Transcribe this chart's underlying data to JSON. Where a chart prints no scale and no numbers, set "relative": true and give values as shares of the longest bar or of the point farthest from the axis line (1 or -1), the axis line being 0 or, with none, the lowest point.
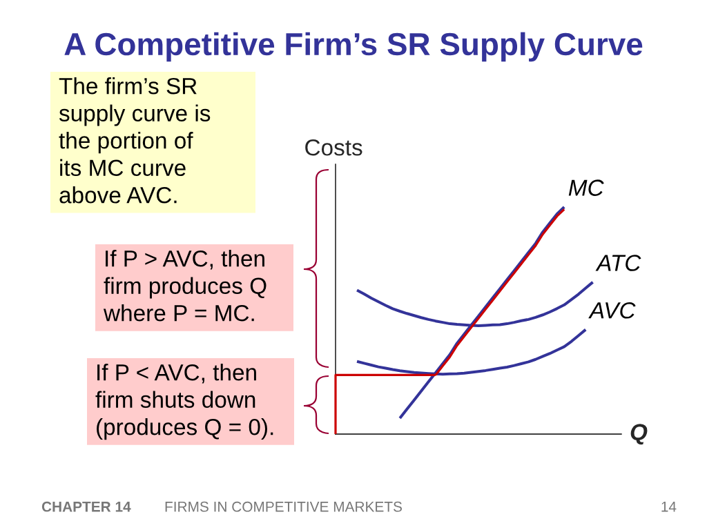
{
  "chart_data": {
    "type": "line",
    "title": "A Competitive Firm’s SR Supply Curve",
    "xlabel": "Q",
    "ylabel": "Costs",
    "relative": true,
    "categories": [
      null,
      null,
      null,
      null,
      null,
      null,
      null,
      null,
      null,
      null,
      null,
      null,
      null,
      null,
      null,
      null,
      null,
      null,
      null,
      null,
      null,
      null,
      null,
      null,
      null,
      null,
      null,
      null,
      null,
      null,
      null,
      null,
      null,
      null,
      null,
      null,
      null,
      null,
      null,
      null,
      null
    ],
    "series": [
      {
        "name": "MC",
        "color": "#333399",
        "values": [
          null,
          null,
          null,
          null,
          null,
          null,
          null,
          null,
          null,
          0.07,
          0.11,
          0.15,
          0.19,
          0.23,
          0.27,
          0.31,
          0.35,
          0.4,
          0.44,
          0.48,
          0.52,
          0.56,
          0.6,
          0.64,
          0.68,
          0.72,
          0.76,
          0.8,
          0.84,
          0.89,
          0.93,
          0.97,
          1.0,
          null,
          null,
          null,
          null,
          null,
          null,
          null,
          null
        ]
      },
      {
        "name": "ATC",
        "color": "#333399",
        "values": [
          null,
          null,
          null,
          0.634,
          0.617,
          0.599,
          0.583,
          0.567,
          0.552,
          0.541,
          0.531,
          0.522,
          0.513,
          0.505,
          0.498,
          0.492,
          0.486,
          0.483,
          0.481,
          0.479,
          0.477,
          0.479,
          0.481,
          0.482,
          0.486,
          0.492,
          0.499,
          0.505,
          0.514,
          0.525,
          0.538,
          0.553,
          0.569,
          0.592,
          0.616,
          0.643,
          0.669,
          null,
          null,
          null,
          null
        ]
      },
      {
        "name": "AVC",
        "color": "#333399",
        "values": [
          null,
          null,
          null,
          0.32,
          0.312,
          0.304,
          0.296,
          0.29,
          0.284,
          0.279,
          0.275,
          0.271,
          0.269,
          0.267,
          0.265,
          0.264,
          0.265,
          0.266,
          0.268,
          0.272,
          0.276,
          0.28,
          0.285,
          0.29,
          0.295,
          0.302,
          0.31,
          0.318,
          0.329,
          0.342,
          0.355,
          0.37,
          0.385,
          0.408,
          0.434,
          0.46,
          null,
          null,
          null,
          null,
          null
        ]
      },
      {
        "type": "step",
        "color": "#cc0000",
        "values": [
          0,
          0.26,
          0.26,
          0.26,
          0.26,
          0.26,
          0.26,
          0.26,
          0.26,
          0.26,
          0.26,
          0.26,
          0.26,
          0.26,
          0.26,
          null,
          null,
          null,
          null,
          null,
          null,
          null,
          null,
          null,
          null,
          null,
          null,
          null,
          null,
          null,
          null,
          null,
          null,
          null,
          null,
          null,
          null,
          null,
          null,
          null,
          null
        ]
      },
      {
        "color": "#cc0000",
        "values": [
          null,
          null,
          null,
          null,
          null,
          null,
          null,
          null,
          null,
          null,
          null,
          null,
          null,
          null,
          0.26,
          0.3,
          0.34,
          0.39,
          0.43,
          0.47,
          0.51,
          0.55,
          0.59,
          0.63,
          0.67,
          0.71,
          0.75,
          0.79,
          0.83,
          0.88,
          0.92,
          0.96,
          0.99,
          null,
          null,
          null,
          null,
          null,
          null,
          null,
          null
        ]
      }
    ],
    "annotations": [
      "The firm’s SR supply curve is the portion of its MC curve above AVC.",
      "If P > AVC, then firm produces Q where P = MC.",
      "If P < AVC, then firm shuts down (produces Q = 0).",
      "CHAPTER 14",
      "FIRMS IN COMPETITIVE MARKETS",
      "14"
    ]
  }
}
